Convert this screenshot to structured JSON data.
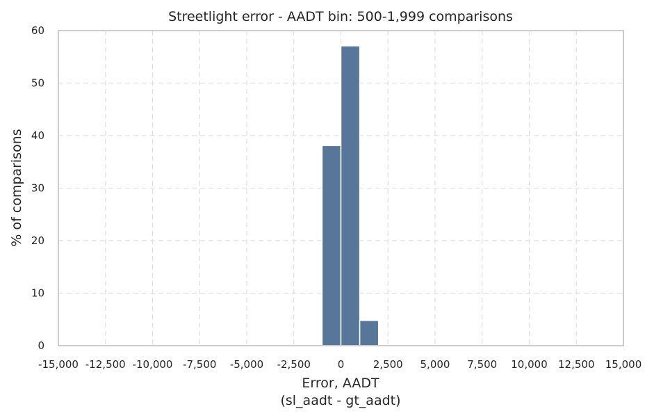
{
  "chart_data": {
    "type": "bar",
    "title": "Streetlight error - AADT bin: 500-1,999 comparisons",
    "xlabel": "Error, AADT",
    "xlabel2": "(sl_aadt - gt_aadt)",
    "ylabel": "% of comparisons",
    "xlim": [
      -15000,
      15000
    ],
    "ylim": [
      0,
      60
    ],
    "xticks": [
      -15000,
      -12500,
      -10000,
      -7500,
      -5000,
      -2500,
      0,
      2500,
      5000,
      7500,
      10000,
      12500,
      15000
    ],
    "xtick_labels": [
      "-15,000",
      "-12,500",
      "-10,000",
      "-7,500",
      "-5,000",
      "-2,500",
      "0",
      "2,500",
      "5,000",
      "7,500",
      "10,000",
      "12,500",
      "15,000"
    ],
    "yticks": [
      0,
      10,
      20,
      30,
      40,
      50,
      60
    ],
    "ytick_labels": [
      "0",
      "10",
      "20",
      "30",
      "40",
      "50",
      "60"
    ],
    "grid": true,
    "bar_color": "#58769a",
    "bins": [
      {
        "start": -1000,
        "end": 0,
        "value": 38.1
      },
      {
        "start": 0,
        "end": 1000,
        "value": 57.1
      },
      {
        "start": 1000,
        "end": 2000,
        "value": 4.8
      }
    ]
  }
}
